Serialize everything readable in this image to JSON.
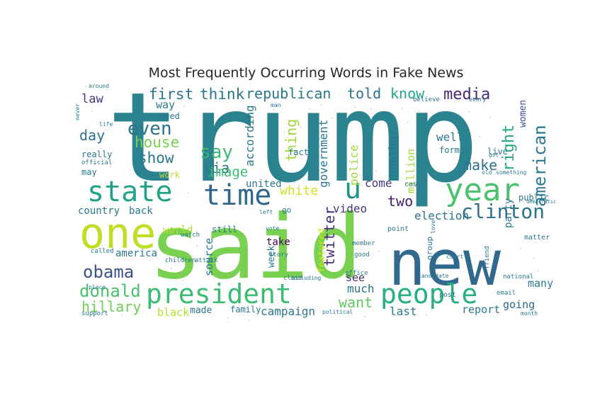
{
  "chart_data": {
    "type": "wordcloud",
    "title": "Most Frequently Occurring Words in Fake News",
    "colormap": "viridis",
    "background": "#ffffff",
    "words": [
      {
        "text": "trump",
        "weight": 1.0,
        "color": "#2a838e"
      },
      {
        "text": "said",
        "weight": 0.85,
        "color": "#7ad151"
      },
      {
        "text": "new",
        "weight": 0.6,
        "color": "#31688e"
      },
      {
        "text": "one",
        "weight": 0.48,
        "color": "#bddf26"
      },
      {
        "text": "president",
        "weight": 0.38,
        "color": "#3dbc74"
      },
      {
        "text": "people",
        "weight": 0.38,
        "color": "#29af7f"
      },
      {
        "text": "year",
        "weight": 0.36,
        "color": "#4ac16d"
      },
      {
        "text": "state",
        "weight": 0.33,
        "color": "#20a386"
      },
      {
        "text": "time",
        "weight": 0.33,
        "color": "#31688e"
      },
      {
        "text": "u",
        "weight": 0.33,
        "color": "#21918c"
      },
      {
        "text": "clinton",
        "weight": 0.23,
        "color": "#2c728e"
      },
      {
        "text": "obama",
        "weight": 0.22,
        "color": "#3b528b"
      },
      {
        "text": "donald",
        "weight": 0.21,
        "color": "#4ac16d"
      },
      {
        "text": "american",
        "weight": 0.2,
        "color": "#2a788e"
      },
      {
        "text": "say",
        "weight": 0.2,
        "color": "#3dbc74"
      },
      {
        "text": "even",
        "weight": 0.19,
        "color": "#2c728e"
      },
      {
        "text": "hillary",
        "weight": 0.17,
        "color": "#6ccd5a"
      },
      {
        "text": "right",
        "weight": 0.17,
        "color": "#22a884"
      },
      {
        "text": "media",
        "weight": 0.16,
        "color": "#482878"
      },
      {
        "text": "republican",
        "weight": 0.16,
        "color": "#2a788e"
      },
      {
        "text": "first",
        "weight": 0.16,
        "color": "#2c728e"
      },
      {
        "text": "think",
        "weight": 0.16,
        "color": "#2c728e"
      },
      {
        "text": "house",
        "weight": 0.15,
        "color": "#7ad151"
      },
      {
        "text": "twitter",
        "weight": 0.15,
        "color": "#472d7b"
      },
      {
        "text": "told",
        "weight": 0.14,
        "color": "#2c728e"
      },
      {
        "text": "know",
        "weight": 0.14,
        "color": "#22a884"
      },
      {
        "text": "show",
        "weight": 0.14,
        "color": "#2a788e"
      },
      {
        "text": "make",
        "weight": 0.14,
        "color": "#2c728e"
      },
      {
        "text": "two",
        "weight": 0.14,
        "color": "#481b6d"
      },
      {
        "text": "via",
        "weight": 0.14,
        "color": "#2a788e"
      },
      {
        "text": "image",
        "weight": 0.14,
        "color": "#3dbc74"
      },
      {
        "text": "white",
        "weight": 0.14,
        "color": "#d2e21b"
      },
      {
        "text": "thing",
        "weight": 0.14,
        "color": "#9fda3a"
      },
      {
        "text": "day",
        "weight": 0.14,
        "color": "#2c728e"
      },
      {
        "text": "want",
        "weight": 0.13,
        "color": "#5ec962"
      },
      {
        "text": "government",
        "weight": 0.12,
        "color": "#2a788e"
      },
      {
        "text": "police",
        "weight": 0.12,
        "color": "#9fda3a"
      },
      {
        "text": "according",
        "weight": 0.12,
        "color": "#2a788e"
      },
      {
        "text": "video",
        "weight": 0.12,
        "color": "#443983"
      },
      {
        "text": "campaign",
        "weight": 0.12,
        "color": "#2a788e"
      },
      {
        "text": "election",
        "weight": 0.12,
        "color": "#2c728e"
      },
      {
        "text": "law",
        "weight": 0.12,
        "color": "#443983"
      },
      {
        "text": "another",
        "weight": 0.11,
        "color": "#2a788e"
      },
      {
        "text": "come",
        "weight": 0.11,
        "color": "#443983"
      },
      {
        "text": "last",
        "weight": 0.11,
        "color": "#2a788e"
      },
      {
        "text": "well",
        "weight": 0.11,
        "color": "#2a788e"
      },
      {
        "text": "report",
        "weight": 0.11,
        "color": "#2a788e"
      },
      {
        "text": "going",
        "weight": 0.11,
        "color": "#31688e"
      },
      {
        "text": "much",
        "weight": 0.11,
        "color": "#2a788e"
      },
      {
        "text": "black",
        "weight": 0.11,
        "color": "#b5de2b"
      },
      {
        "text": "source",
        "weight": 0.11,
        "color": "#2a788e"
      },
      {
        "text": "see",
        "weight": 0.1,
        "color": "#472d7b"
      },
      {
        "text": "many",
        "weight": 0.1,
        "color": "#2a788e"
      },
      {
        "text": "world",
        "weight": 0.1,
        "color": "#b5de2b"
      },
      {
        "text": "million",
        "weight": 0.1,
        "color": "#a0da39"
      },
      {
        "text": "united",
        "weight": 0.1,
        "color": "#2a788e"
      },
      {
        "text": "way",
        "weight": 0.1,
        "color": "#2a788e"
      },
      {
        "text": "party",
        "weight": 0.1,
        "color": "#2a788e"
      },
      {
        "text": "women",
        "weight": 0.1,
        "color": "#3b528b"
      },
      {
        "text": "country",
        "weight": 0.1,
        "color": "#2a788e"
      },
      {
        "text": "back",
        "weight": 0.1,
        "color": "#2a788e"
      },
      {
        "text": "america",
        "weight": 0.1,
        "color": "#2a788e"
      },
      {
        "text": "take",
        "weight": 0.1,
        "color": "#440154"
      },
      {
        "text": "made",
        "weight": 0.1,
        "color": "#2a788e"
      },
      {
        "text": "week",
        "weight": 0.09,
        "color": "#2a788e"
      },
      {
        "text": "featured",
        "weight": 0.09,
        "color": "#d2e21b"
      },
      {
        "text": "family",
        "weight": 0.09,
        "color": "#2a788e"
      },
      {
        "text": "former",
        "weight": 0.09,
        "color": "#2a788e"
      },
      {
        "text": "public",
        "weight": 0.09,
        "color": "#2a788e"
      },
      {
        "text": "may",
        "weight": 0.09,
        "color": "#2a788e"
      },
      {
        "text": "really",
        "weight": 0.09,
        "color": "#2a788e"
      },
      {
        "text": "need",
        "weight": 0.09,
        "color": "#2a788e"
      },
      {
        "text": "live",
        "weight": 0.09,
        "color": "#2a788e"
      },
      {
        "text": "fact",
        "weight": 0.08,
        "color": "#2a788e"
      },
      {
        "text": "still",
        "weight": 0.08,
        "color": "#2a788e"
      },
      {
        "text": "work",
        "weight": 0.08,
        "color": "#b5de2b"
      },
      {
        "text": "group",
        "weight": 0.08,
        "color": "#2a788e"
      },
      {
        "text": "go",
        "weight": 0.08,
        "color": "#2a788e"
      },
      {
        "text": "point",
        "weight": 0.08,
        "color": "#2a788e"
      },
      {
        "text": "case",
        "weight": 0.08,
        "color": "#2a788e"
      },
      {
        "text": "matter",
        "weight": 0.08,
        "color": "#2a788e"
      },
      {
        "text": "post",
        "weight": 0.08,
        "color": "#2a788e"
      },
      {
        "text": "member",
        "weight": 0.07,
        "color": "#2a788e"
      },
      {
        "text": "children",
        "weight": 0.07,
        "color": "#2a788e"
      },
      {
        "text": "story",
        "weight": 0.07,
        "color": "#2a788e"
      },
      {
        "text": "good",
        "weight": 0.07,
        "color": "#2a788e"
      },
      {
        "text": "office",
        "weight": 0.07,
        "color": "#2a788e"
      },
      {
        "text": "email",
        "weight": 0.07,
        "color": "#2a788e"
      },
      {
        "text": "support",
        "weight": 0.07,
        "color": "#2a788e"
      },
      {
        "text": "called",
        "weight": 0.07,
        "color": "#2a788e"
      },
      {
        "text": "watch",
        "weight": 0.07,
        "color": "#2a788e"
      },
      {
        "text": "attack",
        "weight": 0.07,
        "color": "#2a788e"
      },
      {
        "text": "claim",
        "weight": 0.07,
        "color": "#2a788e"
      },
      {
        "text": "official",
        "weight": 0.07,
        "color": "#2a788e"
      },
      {
        "text": "believe",
        "weight": 0.07,
        "color": "#2a788e"
      },
      {
        "text": "life",
        "weight": 0.07,
        "color": "#2a788e"
      },
      {
        "text": "court",
        "weight": 0.07,
        "color": "#2a788e"
      },
      {
        "text": "every",
        "weight": 0.07,
        "color": "#2a788e"
      },
      {
        "text": "candidate",
        "weight": 0.07,
        "color": "#2a788e"
      },
      {
        "text": "national",
        "weight": 0.07,
        "color": "#2a788e"
      },
      {
        "text": "friend",
        "weight": 0.06,
        "color": "#2a788e"
      },
      {
        "text": "love",
        "weight": 0.06,
        "color": "#2a788e"
      },
      {
        "text": "political",
        "weight": 0.06,
        "color": "#2a788e"
      },
      {
        "text": "month",
        "weight": 0.06,
        "color": "#2a788e"
      },
      {
        "text": "around",
        "weight": 0.06,
        "color": "#2a788e"
      },
      {
        "text": "left",
        "weight": 0.06,
        "color": "#2a788e"
      },
      {
        "text": "place",
        "weight": 0.06,
        "color": "#2a788e"
      },
      {
        "text": "never",
        "weight": 0.06,
        "color": "#2a788e"
      },
      {
        "text": "including",
        "weight": 0.06,
        "color": "#2a788e"
      },
      {
        "text": "vote",
        "weight": 0.06,
        "color": "#2a788e"
      },
      {
        "text": "got",
        "weight": 0.06,
        "color": "#2a788e"
      },
      {
        "text": "old",
        "weight": 0.05,
        "color": "#2a788e"
      },
      {
        "text": "something",
        "weight": 0.05,
        "color": "#2a788e"
      },
      {
        "text": "pic",
        "weight": 0.05,
        "color": "#2a788e"
      },
      {
        "text": "man",
        "weight": 0.05,
        "color": "#2a788e"
      },
      {
        "text": "democratic",
        "weight": 0.05,
        "color": "#2a788e"
      }
    ]
  }
}
